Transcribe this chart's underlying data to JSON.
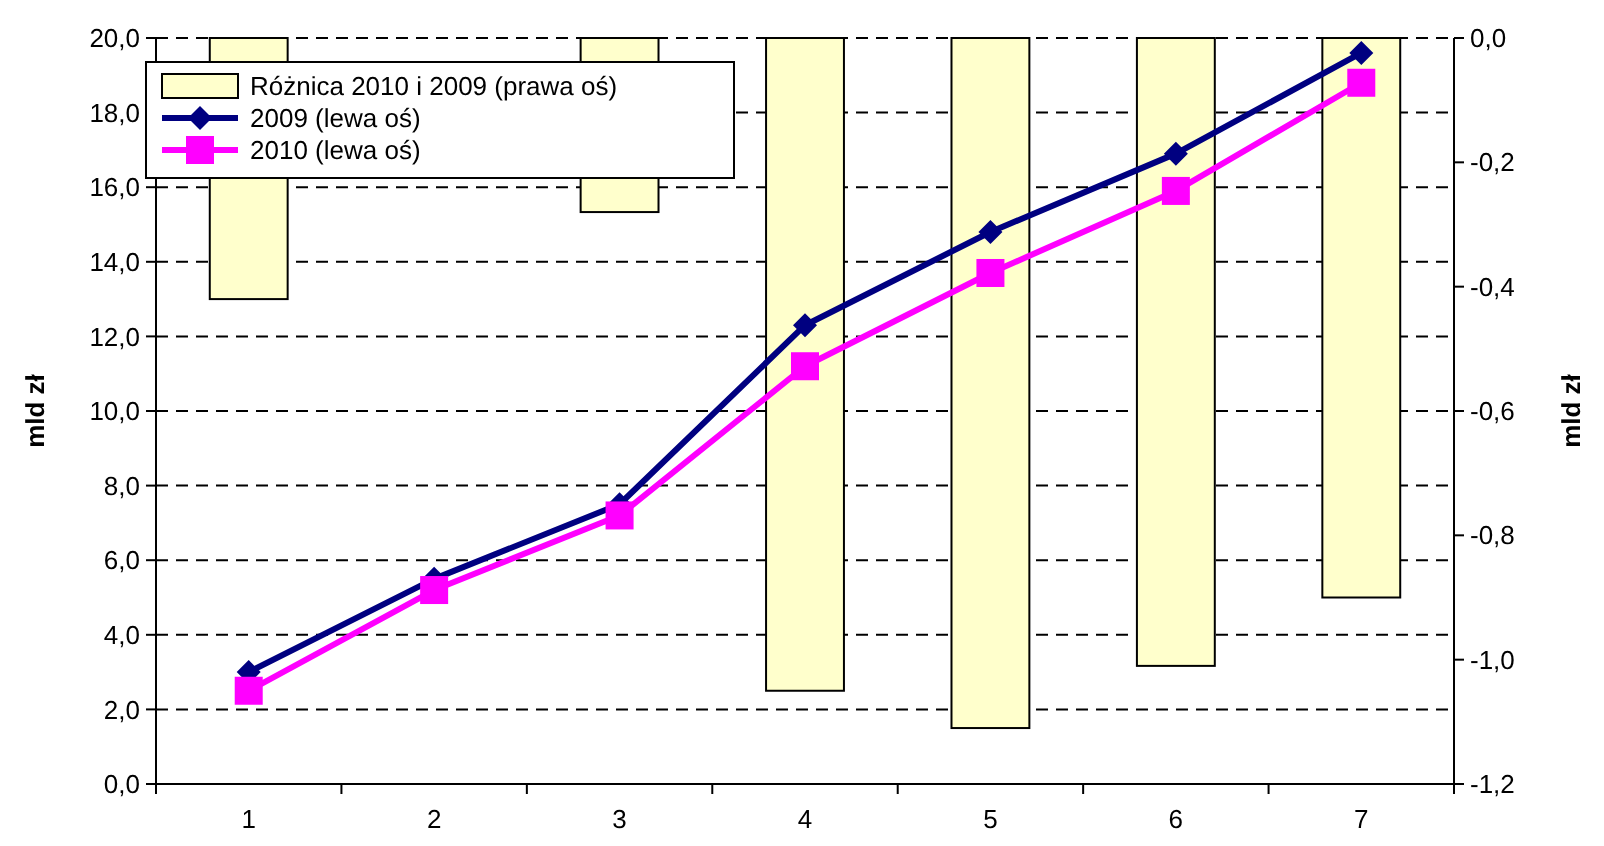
{
  "chart_data": {
    "type": "line",
    "categories": [
      "1",
      "2",
      "3",
      "4",
      "5",
      "6",
      "7"
    ],
    "ylabel": "mld zł",
    "y2label": "mld zł",
    "ylim": [
      0,
      20
    ],
    "yticks": [
      {
        "value": 0,
        "label": "0,0"
      },
      {
        "value": 2,
        "label": "2,0"
      },
      {
        "value": 4,
        "label": "4,0"
      },
      {
        "value": 6,
        "label": "6,0"
      },
      {
        "value": 8,
        "label": "8,0"
      },
      {
        "value": 10,
        "label": "10,0"
      },
      {
        "value": 12,
        "label": "12,0"
      },
      {
        "value": 14,
        "label": "14,0"
      },
      {
        "value": 16,
        "label": "16,0"
      },
      {
        "value": 18,
        "label": "18,0"
      },
      {
        "value": 20,
        "label": "20,0"
      }
    ],
    "y2lim": [
      -1.2,
      0
    ],
    "y2ticks": [
      {
        "value": -1.2,
        "label": "-1,2"
      },
      {
        "value": -1.0,
        "label": "-1,0"
      },
      {
        "value": -0.8,
        "label": "-0,8"
      },
      {
        "value": -0.6,
        "label": "-0,6"
      },
      {
        "value": -0.4,
        "label": "-0,4"
      },
      {
        "value": -0.2,
        "label": "-0,2"
      },
      {
        "value": 0,
        "label": "0,0"
      }
    ],
    "grid": "y",
    "legend": "top left",
    "series": [
      {
        "name": "Różnica 2010 i 2009 (prawa oś)",
        "type": "bar",
        "axis": "y2",
        "color": "#ffffcc",
        "values": [
          -0.42,
          null,
          -0.28,
          -1.05,
          -1.11,
          -1.01,
          -0.9
        ]
      },
      {
        "name": "2009 (lewa oś)",
        "color": "#000080",
        "marker": "diamond",
        "values": [
          3.0,
          5.5,
          7.5,
          12.3,
          14.8,
          16.9,
          19.6
        ]
      },
      {
        "name": "2010 (lewa oś)",
        "color": "#ff00ff",
        "marker": "square",
        "values": [
          2.5,
          5.2,
          7.2,
          11.2,
          13.7,
          15.9,
          18.8
        ]
      }
    ]
  }
}
